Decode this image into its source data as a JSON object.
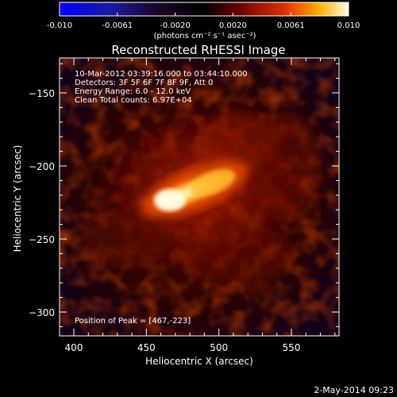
{
  "colorbar": {
    "ticks": [
      "-0.010",
      "-0.0061",
      "-0.0020",
      "0.0020",
      "0.0061",
      "0.010"
    ],
    "units": "(photons cm⁻² s⁻¹ asec⁻²)"
  },
  "plot": {
    "title": "Reconstructed RHESSI Image",
    "info_lines": [
      "10-Mar-2012 03:39:16.000 to 03:44:10.000",
      "Detectors: 3F 5F 6F 7F 8F 9F, Att 0",
      "Energy Range: 6.0 - 12.0 keV",
      "Clean     Total counts: 6.97E+04"
    ],
    "peak_label": "Position of Peak = [467,-223]",
    "xlabel": "Heliocentric X (arcsec)",
    "ylabel": "Heliocentric Y (arcsec)",
    "x_ticks": [
      "400",
      "450",
      "500",
      "550"
    ],
    "y_ticks": [
      "-150",
      "-200",
      "-250",
      "-300"
    ]
  },
  "footer": {
    "timestamp": "2-May-2014 09:23"
  }
}
